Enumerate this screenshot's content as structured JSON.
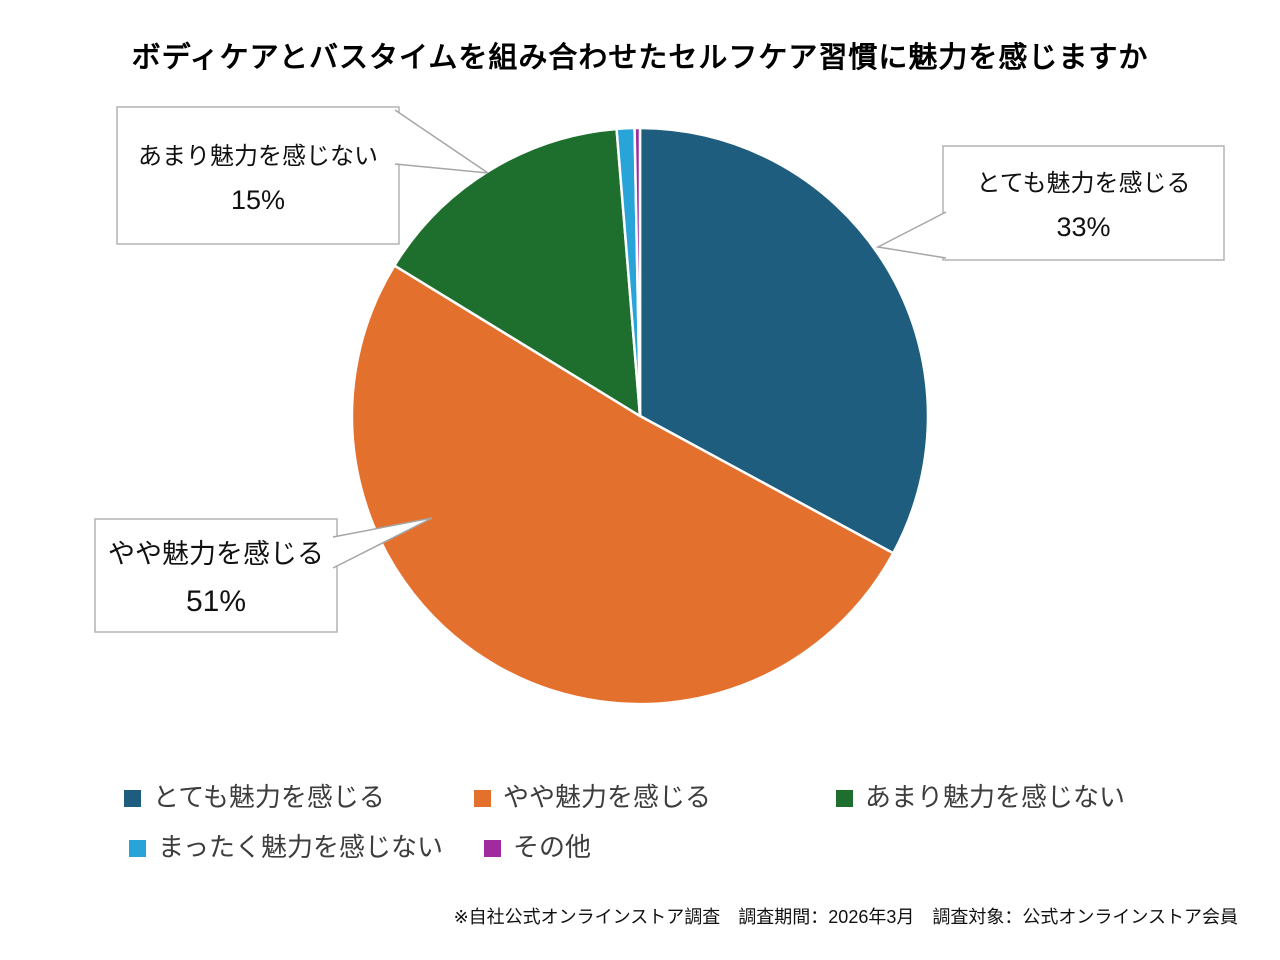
{
  "title": "ボディケアとバスタイムを組み合わせたセルフケア習慣に魅力を感じますか",
  "chart_data": {
    "type": "pie",
    "title": "ボディケアとバスタイムを組み合わせたセルフケア習慣に魅力を感じますか",
    "categories": [
      "とても魅力を感じる",
      "やや魅力を感じる",
      "あまり魅力を感じない",
      "まったく魅力を感じない",
      "その他"
    ],
    "values": [
      33,
      51,
      15,
      1,
      0.3
    ],
    "displayed_percent_labels": [
      "33%",
      "51%",
      "15%",
      "",
      ""
    ],
    "colors": [
      "#1f5d7e",
      "#e4702e",
      "#1e6f2d",
      "#29a4d9",
      "#9f2b9f"
    ],
    "start_angle_deg": 0,
    "direction": "clockwise",
    "slice_border_color": "#ffffff",
    "legend_position": "bottom",
    "small_slice_values_estimated": true
  },
  "callouts": {
    "very": {
      "label": "とても魅力を感じる",
      "value": "33%"
    },
    "somewhat": {
      "label": "やや魅力を感じる",
      "value": "51%"
    },
    "not_very": {
      "label": "あまり魅力を感じない",
      "value": "15%"
    }
  },
  "footer": "※自社公式オンラインストア調査　調査期間：2026年3月　調査対象：公式オンラインストア会員",
  "style": {
    "callout_border_color": "#b3b3b3",
    "leader_line_color": "#a6a6a6",
    "legend_text_color": "#3d3d3d"
  }
}
